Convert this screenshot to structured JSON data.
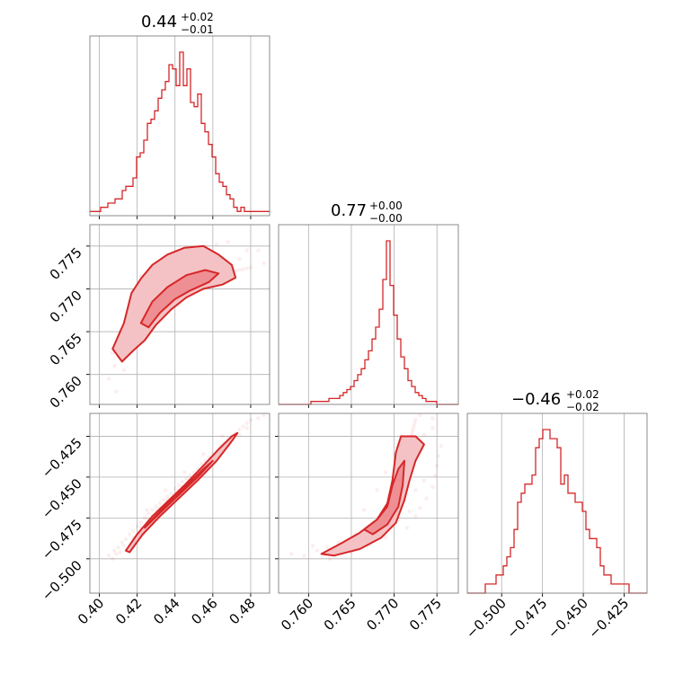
{
  "chart_data": {
    "type": "corner",
    "color": "#d62728",
    "parameters": [
      {
        "title_value": "0.44",
        "title_plus": "+0.02",
        "title_minus": "−0.01",
        "range": [
          0.395,
          0.49
        ],
        "ticks": [
          0.4,
          0.42,
          0.44,
          0.46,
          0.48
        ],
        "tick_labels": [
          "0.40",
          "0.42",
          "0.44",
          "0.46",
          "0.48"
        ]
      },
      {
        "title_value": "0.77",
        "title_plus": "+0.00",
        "title_minus": "−0.00",
        "range": [
          0.7565,
          0.7775
        ],
        "ticks": [
          0.76,
          0.765,
          0.77,
          0.775
        ],
        "tick_labels": [
          "0.760",
          "0.765",
          "0.770",
          "0.775"
        ]
      },
      {
        "title_value": "−0.46",
        "title_plus": "+0.02",
        "title_minus": "−0.02",
        "range": [
          -0.521,
          -0.411
        ],
        "ticks": [
          -0.5,
          -0.475,
          -0.45,
          -0.425
        ],
        "tick_labels": [
          "−0.500",
          "−0.475",
          "−0.450",
          "−0.425"
        ]
      }
    ],
    "histograms": [
      {
        "param": 0,
        "counts": [
          1,
          1,
          1,
          2,
          2,
          3,
          3,
          4,
          4,
          6,
          7,
          7,
          9,
          14,
          15,
          18,
          22,
          23,
          25,
          28,
          30,
          32,
          36,
          35,
          31,
          39,
          31,
          35,
          27,
          26,
          29,
          22,
          20,
          17,
          14,
          10,
          8,
          7,
          5,
          4,
          2,
          1,
          2,
          1,
          1,
          1,
          1,
          1,
          1,
          1
        ]
      },
      {
        "param": 1,
        "counts": [
          0,
          0,
          0,
          0,
          0,
          0,
          0,
          0,
          0,
          1,
          1,
          1,
          1,
          1,
          2,
          2,
          2,
          3,
          4,
          5,
          6,
          8,
          10,
          12,
          15,
          18,
          22,
          26,
          32,
          42,
          55,
          40,
          30,
          22,
          16,
          12,
          8,
          6,
          4,
          3,
          2,
          1,
          1,
          1,
          0,
          0,
          0,
          0,
          0,
          0
        ]
      },
      {
        "param": 2,
        "counts": [
          0,
          0,
          0,
          0,
          0,
          1,
          1,
          1,
          2,
          2,
          3,
          4,
          5,
          7,
          10,
          11,
          12,
          12,
          13,
          16,
          17,
          18,
          18,
          17,
          17,
          16,
          12,
          13,
          11,
          11,
          10,
          10,
          9,
          7,
          6,
          6,
          5,
          3,
          2,
          2,
          1,
          1,
          1,
          1,
          1,
          0,
          0,
          0,
          0,
          0
        ]
      }
    ],
    "samples": [
      {
        "x": 0.405,
        "y": 0.7595,
        "z": -0.498
      },
      {
        "x": 0.408,
        "y": 0.761,
        "z": -0.495
      },
      {
        "x": 0.41,
        "y": 0.7622,
        "z": -0.493
      },
      {
        "x": 0.412,
        "y": 0.7635,
        "z": -0.49
      },
      {
        "x": 0.414,
        "y": 0.7648,
        "z": -0.488
      },
      {
        "x": 0.416,
        "y": 0.7655,
        "z": -0.485
      },
      {
        "x": 0.418,
        "y": 0.7662,
        "z": -0.483
      },
      {
        "x": 0.42,
        "y": 0.767,
        "z": -0.48
      },
      {
        "x": 0.422,
        "y": 0.7676,
        "z": -0.478
      },
      {
        "x": 0.424,
        "y": 0.7682,
        "z": -0.475
      },
      {
        "x": 0.426,
        "y": 0.7688,
        "z": -0.472
      },
      {
        "x": 0.428,
        "y": 0.7692,
        "z": -0.47
      },
      {
        "x": 0.43,
        "y": 0.7696,
        "z": -0.468
      },
      {
        "x": 0.432,
        "y": 0.7698,
        "z": -0.466
      },
      {
        "x": 0.434,
        "y": 0.77,
        "z": -0.464
      },
      {
        "x": 0.436,
        "y": 0.7702,
        "z": -0.462
      },
      {
        "x": 0.438,
        "y": 0.7704,
        "z": -0.46
      },
      {
        "x": 0.44,
        "y": 0.7705,
        "z": -0.457
      },
      {
        "x": 0.442,
        "y": 0.7706,
        "z": -0.455
      },
      {
        "x": 0.444,
        "y": 0.7707,
        "z": -0.453
      },
      {
        "x": 0.446,
        "y": 0.7708,
        "z": -0.451
      },
      {
        "x": 0.448,
        "y": 0.7709,
        "z": -0.449
      },
      {
        "x": 0.45,
        "y": 0.771,
        "z": -0.447
      },
      {
        "x": 0.452,
        "y": 0.7711,
        "z": -0.445
      },
      {
        "x": 0.454,
        "y": 0.7712,
        "z": -0.442
      },
      {
        "x": 0.456,
        "y": 0.7713,
        "z": -0.44
      },
      {
        "x": 0.458,
        "y": 0.7714,
        "z": -0.438
      },
      {
        "x": 0.46,
        "y": 0.7715,
        "z": -0.436
      },
      {
        "x": 0.462,
        "y": 0.7716,
        "z": -0.434
      },
      {
        "x": 0.464,
        "y": 0.7717,
        "z": -0.431
      },
      {
        "x": 0.466,
        "y": 0.7718,
        "z": -0.429
      },
      {
        "x": 0.468,
        "y": 0.7719,
        "z": -0.427
      },
      {
        "x": 0.47,
        "y": 0.772,
        "z": -0.425
      },
      {
        "x": 0.472,
        "y": 0.7721,
        "z": -0.423
      },
      {
        "x": 0.474,
        "y": 0.7722,
        "z": -0.421
      },
      {
        "x": 0.476,
        "y": 0.7723,
        "z": -0.419
      },
      {
        "x": 0.478,
        "y": 0.7724,
        "z": -0.417
      },
      {
        "x": 0.48,
        "y": 0.7725,
        "z": -0.415
      },
      {
        "x": 0.418,
        "y": 0.769,
        "z": -0.487
      },
      {
        "x": 0.422,
        "y": 0.7715,
        "z": -0.481
      },
      {
        "x": 0.428,
        "y": 0.7725,
        "z": -0.474
      },
      {
        "x": 0.432,
        "y": 0.773,
        "z": -0.469
      },
      {
        "x": 0.438,
        "y": 0.7738,
        "z": -0.463
      },
      {
        "x": 0.444,
        "y": 0.7745,
        "z": -0.456
      },
      {
        "x": 0.45,
        "y": 0.7748,
        "z": -0.449
      },
      {
        "x": 0.456,
        "y": 0.775,
        "z": -0.443
      },
      {
        "x": 0.462,
        "y": 0.7752,
        "z": -0.437
      },
      {
        "x": 0.468,
        "y": 0.7755,
        "z": -0.431
      },
      {
        "x": 0.425,
        "y": 0.7665,
        "z": -0.47
      },
      {
        "x": 0.435,
        "y": 0.768,
        "z": -0.458
      },
      {
        "x": 0.445,
        "y": 0.769,
        "z": -0.447
      },
      {
        "x": 0.455,
        "y": 0.77,
        "z": -0.436
      },
      {
        "x": 0.465,
        "y": 0.7708,
        "z": -0.425
      },
      {
        "x": 0.436,
        "y": 0.7712,
        "z": -0.464
      },
      {
        "x": 0.442,
        "y": 0.7725,
        "z": -0.458
      },
      {
        "x": 0.448,
        "y": 0.7735,
        "z": -0.452
      },
      {
        "x": 0.426,
        "y": 0.7705,
        "z": -0.476
      },
      {
        "x": 0.431,
        "y": 0.7718,
        "z": -0.471
      },
      {
        "x": 0.474,
        "y": 0.7735,
        "z": -0.424
      },
      {
        "x": 0.478,
        "y": 0.7745,
        "z": -0.42
      },
      {
        "x": 0.484,
        "y": 0.7745,
        "z": -0.414
      },
      {
        "x": 0.487,
        "y": 0.773,
        "z": -0.412
      },
      {
        "x": 0.413,
        "y": 0.7605,
        "z": -0.492
      },
      {
        "x": 0.409,
        "y": 0.758,
        "z": -0.497
      },
      {
        "x": 0.407,
        "y": 0.7625,
        "z": -0.5
      },
      {
        "x": 0.411,
        "y": 0.765,
        "z": -0.496
      }
    ],
    "contours": {
      "p1_p0": [
        {
          "level": "outer",
          "points": [
            [
              0.407,
              0.763
            ],
            [
              0.413,
              0.766
            ],
            [
              0.417,
              0.7695
            ],
            [
              0.422,
              0.7712
            ],
            [
              0.428,
              0.7728
            ],
            [
              0.436,
              0.774
            ],
            [
              0.445,
              0.7748
            ],
            [
              0.455,
              0.775
            ],
            [
              0.463,
              0.774
            ],
            [
              0.47,
              0.7728
            ],
            [
              0.472,
              0.7713
            ],
            [
              0.465,
              0.7705
            ],
            [
              0.455,
              0.77
            ],
            [
              0.446,
              0.769
            ],
            [
              0.438,
              0.7676
            ],
            [
              0.43,
              0.7658
            ],
            [
              0.424,
              0.764
            ],
            [
              0.418,
              0.7628
            ],
            [
              0.412,
              0.7615
            ]
          ]
        },
        {
          "level": "inner",
          "points": [
            [
              0.422,
              0.766
            ],
            [
              0.428,
              0.7685
            ],
            [
              0.436,
              0.7702
            ],
            [
              0.446,
              0.7716
            ],
            [
              0.456,
              0.7722
            ],
            [
              0.463,
              0.7718
            ],
            [
              0.458,
              0.7708
            ],
            [
              0.448,
              0.7698
            ],
            [
              0.44,
              0.7688
            ],
            [
              0.432,
              0.7672
            ],
            [
              0.426,
              0.7655
            ]
          ]
        }
      ],
      "p2_p0": [
        {
          "level": "outer",
          "points": [
            [
              0.414,
              -0.495
            ],
            [
              0.42,
              -0.485
            ],
            [
              0.428,
              -0.474
            ],
            [
              0.436,
              -0.465
            ],
            [
              0.445,
              -0.455
            ],
            [
              0.455,
              -0.443
            ],
            [
              0.463,
              -0.433
            ],
            [
              0.47,
              -0.425
            ],
            [
              0.473,
              -0.423
            ],
            [
              0.47,
              -0.428
            ],
            [
              0.462,
              -0.44
            ],
            [
              0.452,
              -0.452
            ],
            [
              0.442,
              -0.463
            ],
            [
              0.432,
              -0.474
            ],
            [
              0.423,
              -0.485
            ],
            [
              0.416,
              -0.496
            ]
          ]
        },
        {
          "level": "inner",
          "points": [
            [
              0.424,
              -0.481
            ],
            [
              0.432,
              -0.472
            ],
            [
              0.442,
              -0.461
            ],
            [
              0.452,
              -0.45
            ],
            [
              0.46,
              -0.44
            ],
            [
              0.456,
              -0.444
            ],
            [
              0.446,
              -0.455
            ],
            [
              0.436,
              -0.466
            ],
            [
              0.427,
              -0.477
            ]
          ]
        }
      ],
      "p2_p1": [
        {
          "level": "outer",
          "points": [
            [
              0.7615,
              -0.497
            ],
            [
              0.764,
              -0.49
            ],
            [
              0.766,
              -0.484
            ],
            [
              0.768,
              -0.476
            ],
            [
              0.7692,
              -0.466
            ],
            [
              0.7698,
              -0.452
            ],
            [
              0.7702,
              -0.435
            ],
            [
              0.7708,
              -0.425
            ],
            [
              0.7725,
              -0.425
            ],
            [
              0.7735,
              -0.43
            ],
            [
              0.7725,
              -0.44
            ],
            [
              0.7718,
              -0.452
            ],
            [
              0.7712,
              -0.464
            ],
            [
              0.7702,
              -0.478
            ],
            [
              0.7685,
              -0.487
            ],
            [
              0.766,
              -0.494
            ],
            [
              0.763,
              -0.498
            ]
          ]
        },
        {
          "level": "inner",
          "points": [
            [
              0.7665,
              -0.482
            ],
            [
              0.768,
              -0.476
            ],
            [
              0.7692,
              -0.468
            ],
            [
              0.7698,
              -0.455
            ],
            [
              0.7705,
              -0.445
            ],
            [
              0.7712,
              -0.44
            ],
            [
              0.771,
              -0.455
            ],
            [
              0.7705,
              -0.468
            ],
            [
              0.7692,
              -0.479
            ],
            [
              0.7675,
              -0.485
            ]
          ]
        }
      ]
    }
  }
}
